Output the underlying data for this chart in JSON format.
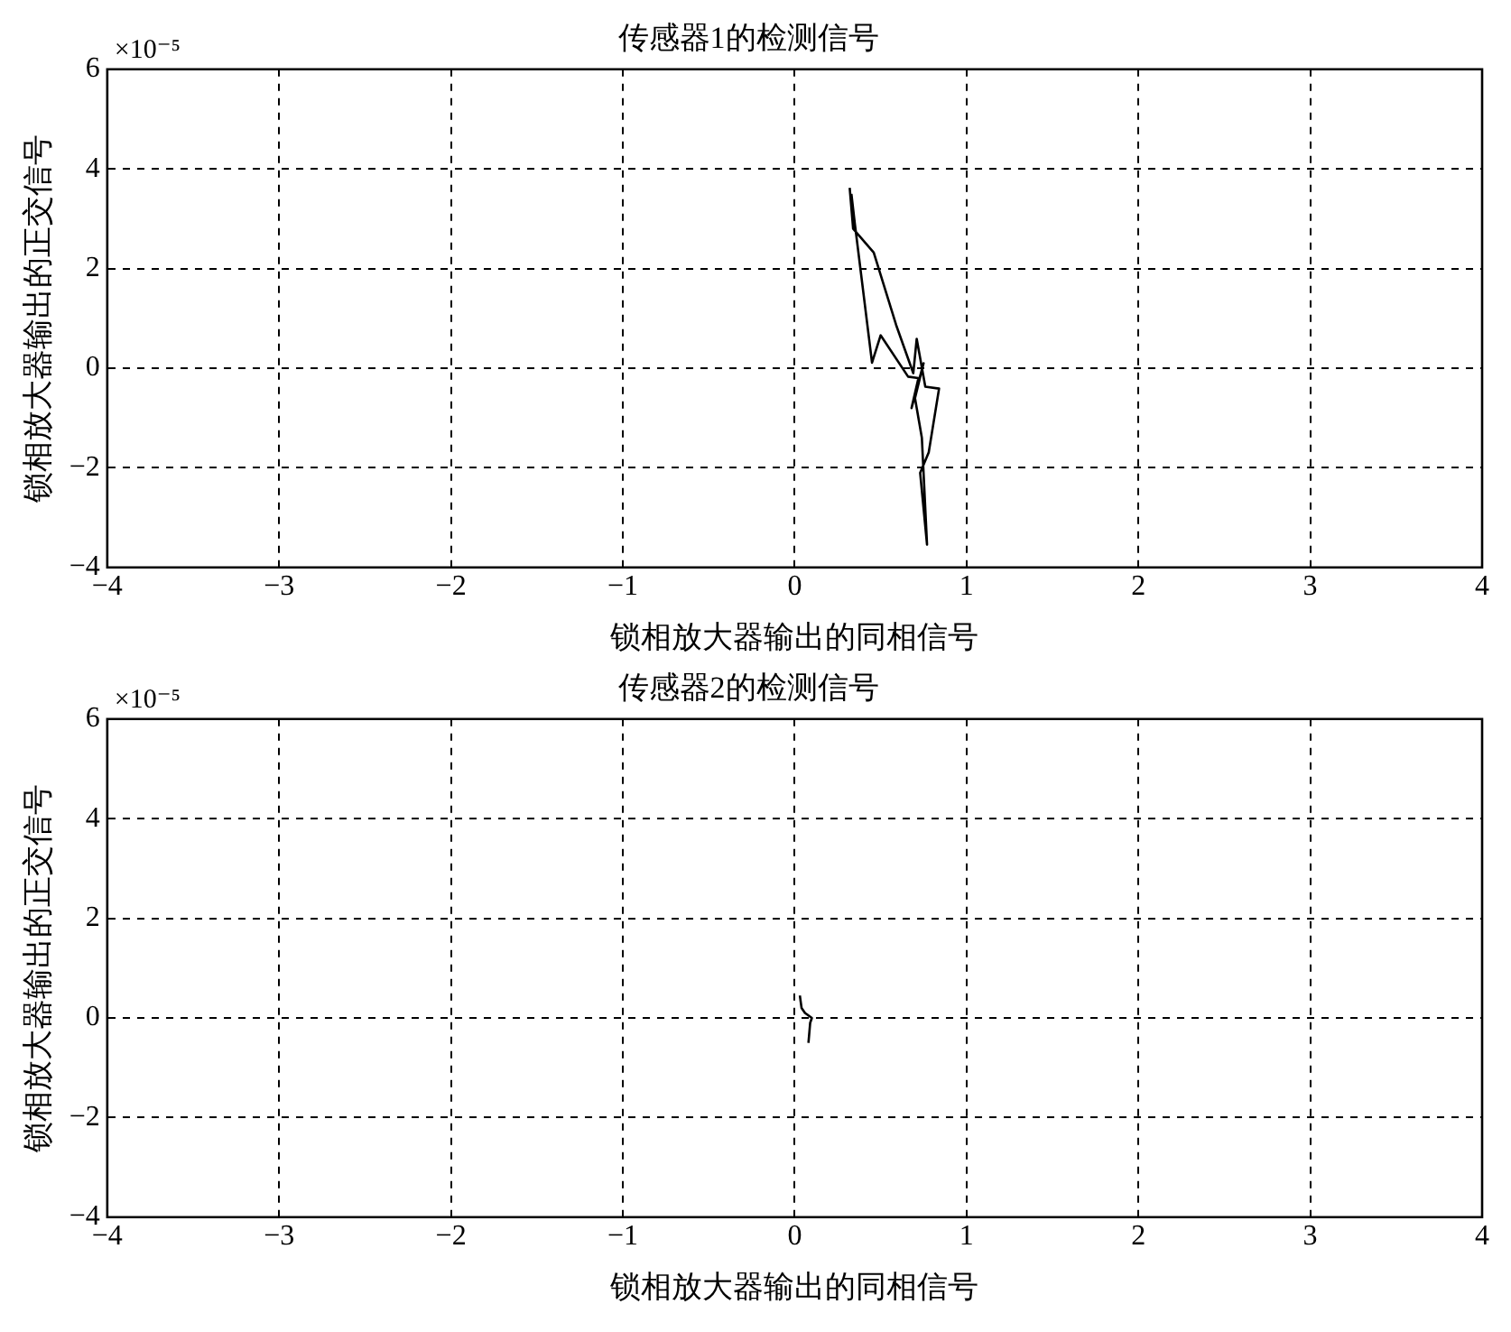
{
  "chart_data": [
    {
      "type": "line",
      "title": "传感器1的检测信号",
      "xlabel": "锁相放大器输出的同相信号",
      "ylabel": "锁相放大器输出的正交信号",
      "annotations": [
        "×10⁻⁵"
      ],
      "series": [
        {
          "color": "#000000",
          "x": [
            0.32,
            0.34,
            0.46,
            0.59,
            0.69,
            0.71,
            0.76,
            0.84,
            0.78,
            0.73,
            0.77,
            0.74,
            0.7,
            0.75,
            0.68,
            0.72,
            0.66,
            0.5,
            0.45,
            0.35,
            0.33
          ],
          "values": [
            3.62,
            2.8,
            2.32,
            0.87,
            -0.1,
            0.59,
            -0.37,
            -0.41,
            -1.69,
            -2.1,
            -3.54,
            -1.4,
            -0.6,
            0.1,
            -0.8,
            -0.2,
            -0.17,
            0.66,
            0.11,
            2.9,
            3.5
          ]
        }
      ],
      "xlim": [
        -4,
        4
      ],
      "xticks": [
        -4,
        -3,
        -2,
        -1,
        0,
        1,
        2,
        3,
        4
      ],
      "ylim": [
        -4,
        6
      ],
      "yticks": [
        -4,
        -2,
        0,
        2,
        4,
        6
      ],
      "grid": true,
      "marker": "none",
      "line_style": "solid"
    },
    {
      "type": "line",
      "title": "传感器2的检测信号",
      "xlabel": "锁相放大器输出的同相信号",
      "ylabel": "锁相放大器输出的正交信号",
      "annotations": [
        "×10⁻⁵"
      ],
      "series": [
        {
          "color": "#000000",
          "x": [
            0.03,
            0.04,
            0.06,
            0.1,
            0.09,
            0.08
          ],
          "values": [
            0.45,
            0.2,
            0.1,
            0.0,
            -0.1,
            -0.5
          ]
        }
      ],
      "xlim": [
        -4,
        4
      ],
      "xticks": [
        -4,
        -3,
        -2,
        -1,
        0,
        1,
        2,
        3,
        4
      ],
      "ylim": [
        -4,
        6
      ],
      "yticks": [
        -4,
        -2,
        0,
        2,
        4,
        6
      ],
      "grid": true,
      "marker": "none",
      "line_style": "solid"
    }
  ]
}
